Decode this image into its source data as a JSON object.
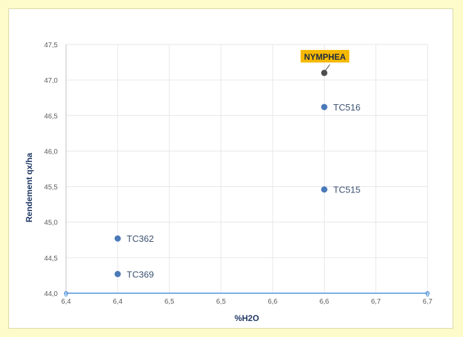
{
  "chart_data": {
    "type": "scatter",
    "xlabel": "%H2O",
    "ylabel": "Rendement qx/ha",
    "xlim": [
      6.35,
      6.7
    ],
    "ylim": [
      44.0,
      47.5
    ],
    "x_ticks": [
      "6,4",
      "6,4",
      "6,5",
      "6,5",
      "6,6",
      "6,6",
      "6,7",
      "6,7"
    ],
    "y_ticks": [
      "44,0",
      "44,5",
      "45,0",
      "45,5",
      "46,0",
      "46,5",
      "47,0",
      "47,5"
    ],
    "grid": true,
    "points": [
      {
        "label": "TC362",
        "x": 6.4,
        "y": 44.77
      },
      {
        "label": "TC369",
        "x": 6.4,
        "y": 44.27
      },
      {
        "label": "TC516",
        "x": 6.6,
        "y": 46.62
      },
      {
        "label": "TC515",
        "x": 6.6,
        "y": 45.46
      }
    ],
    "highlight": {
      "label": "NYMPHEA",
      "x": 6.6,
      "y": 47.1
    },
    "edge_markers": [
      "0",
      "0"
    ],
    "colors": {
      "point": "#4a7ab8",
      "highlight_point": "#4d4d4d",
      "callout_bg": "#f5b800",
      "baseline": "#4a90d9"
    }
  }
}
